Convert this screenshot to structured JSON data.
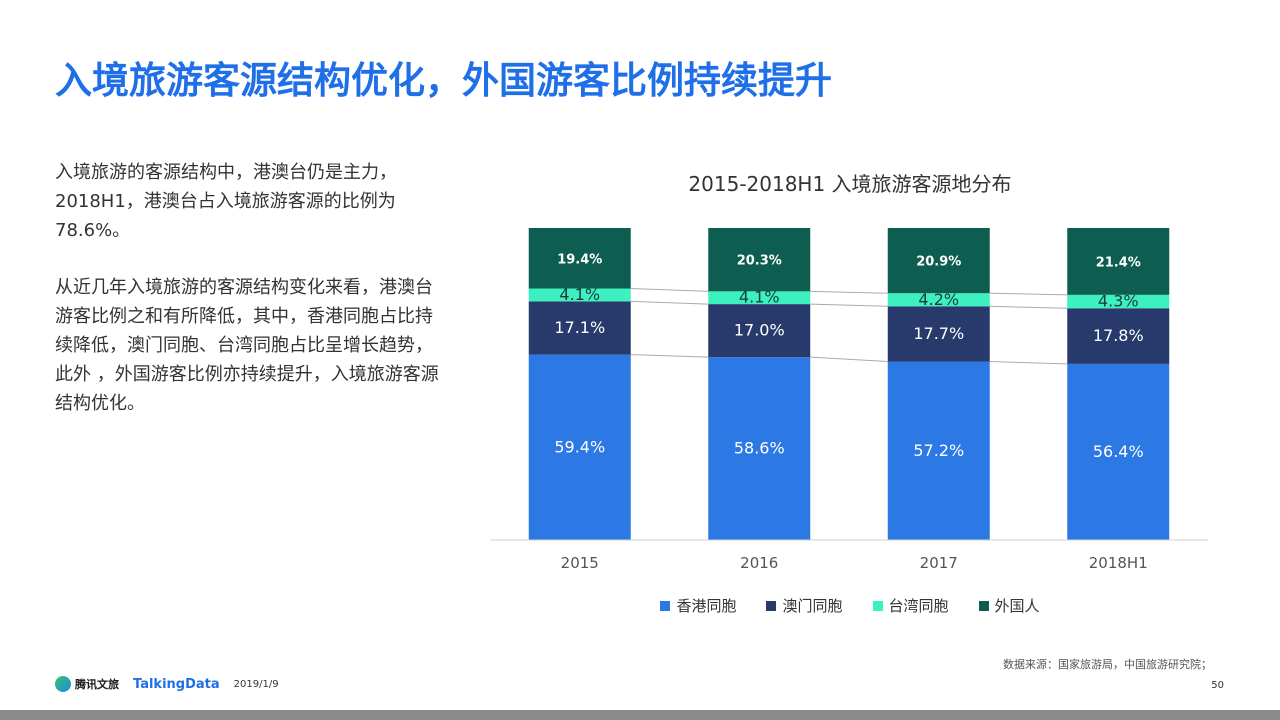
{
  "title": "入境旅游客源结构优化，外国游客比例持续提升",
  "body": {
    "paragraph1": "入境旅游的客源结构中，港澳台仍是主力，2018H1，港澳台占入境旅游客源的比例为78.6%。",
    "paragraph2": "从近几年入境旅游的客源结构变化来看，港澳台游客比例之和有所降低，其中，香港同胞占比持续降低，澳门同胞、台湾同胞占比呈增长趋势，此外 ，外国游客比例亦持续提升，入境旅游客源结构优化。"
  },
  "chart_data": {
    "type": "bar",
    "stacked": true,
    "title": "2015-2018H1 入境旅游客源地分布",
    "categories": [
      "2015",
      "2016",
      "2017",
      "2018H1"
    ],
    "series": [
      {
        "name": "香港同胞",
        "values": [
          59.4,
          58.6,
          57.2,
          56.4
        ],
        "labels": [
          "59.4%",
          "58.6%",
          "57.2%",
          "56.4%"
        ],
        "color": "#2c78e4"
      },
      {
        "name": "澳门同胞",
        "values": [
          17.1,
          17.0,
          17.7,
          17.8
        ],
        "labels": [
          "17.1%",
          "17.0%",
          "17.7%",
          "17.8%"
        ],
        "color": "#273a6b"
      },
      {
        "name": "台湾同胞",
        "values": [
          4.1,
          4.1,
          4.2,
          4.3
        ],
        "labels": [
          "4.1%",
          "4.1%",
          "4.2%",
          "4.3%"
        ],
        "color": "#3df0c0"
      },
      {
        "name": "外国人",
        "values": [
          19.4,
          20.3,
          20.9,
          21.4
        ],
        "labels": [
          "19.4%",
          "20.3%",
          "20.9%",
          "21.4%"
        ],
        "color": "#0d5e50"
      }
    ],
    "legend_position": "bottom",
    "grid": false
  },
  "footer": {
    "source": "数据来源：国家旅游局，中国旅游研究院；",
    "logo1": "腾讯文旅",
    "logo2": "TalkingData",
    "date": "2019/1/9",
    "page": "50"
  }
}
